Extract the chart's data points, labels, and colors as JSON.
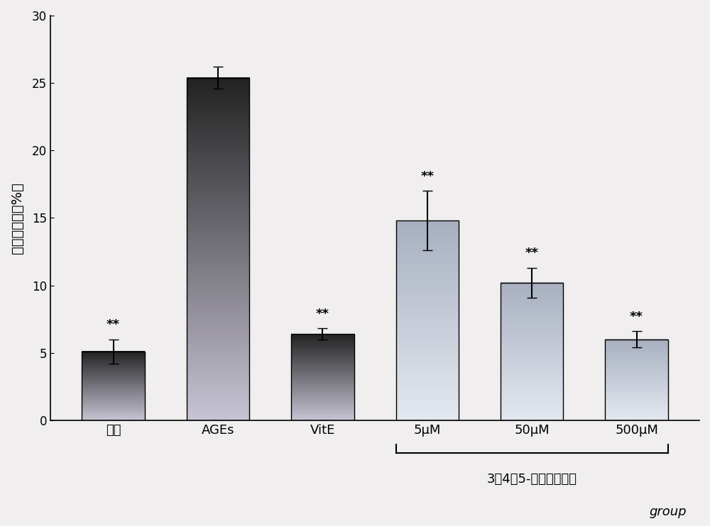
{
  "categories": [
    "正常",
    "AGEs",
    "VitE",
    "5μM",
    "50μM",
    "500μM"
  ],
  "values": [
    5.1,
    25.4,
    6.4,
    14.8,
    10.2,
    6.0
  ],
  "errors": [
    0.9,
    0.8,
    0.4,
    2.2,
    1.1,
    0.6
  ],
  "ylabel": "凋亡百分率（%）",
  "xlabel": "group",
  "bracket_label": "3，4，5-三甲氧基苯酚",
  "sig_label": "**",
  "ylim": [
    0,
    30
  ],
  "yticks": [
    0,
    5,
    10,
    15,
    20,
    25,
    30
  ],
  "bar_width": 0.6,
  "bg_color": "#f0eeee",
  "dark_top": "#222222",
  "dark_bottom": "#c8c4d4",
  "light_top": "#a8b0c0",
  "light_bottom": "#e4e8f0",
  "figsize": [
    10.0,
    7.42
  ],
  "dpi": 100
}
